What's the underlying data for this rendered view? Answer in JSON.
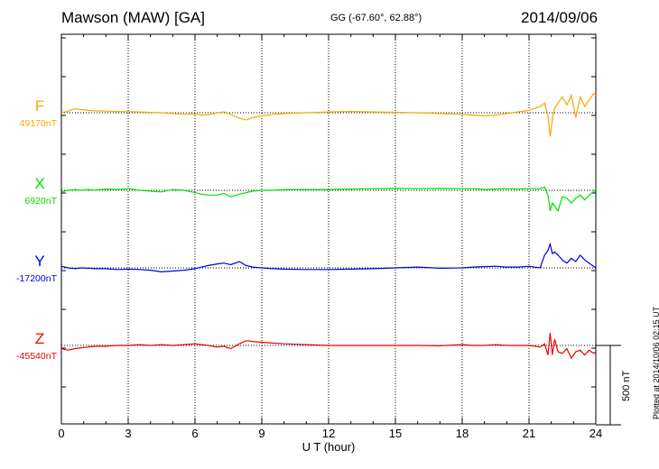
{
  "header": {
    "station": "Mawson (MAW)  [GA]",
    "coords": "GG (-67.60°,  62.88°)",
    "date": "2014/09/06"
  },
  "footer": {
    "plotted": "Plotted at 2014/10/06 02:15 UT",
    "scale_label": "500 nT"
  },
  "colors": {
    "F": "#f5a800",
    "X": "#00dd00",
    "Y": "#0000dd",
    "Z": "#ee0000"
  },
  "chart_data": {
    "type": "line",
    "title": "Mawson (MAW)  [GA]",
    "xlabel": "U T (hour)",
    "ylabel": "",
    "xlim": [
      0,
      24
    ],
    "xticks": [
      "0",
      "3",
      "6",
      "9",
      "12",
      "15",
      "18",
      "21",
      "24"
    ],
    "grid": true,
    "scale_bar_nT": 500,
    "series": [
      {
        "name": "F",
        "baseline_label": "49170nT",
        "x": [
          0,
          0.3,
          0.6,
          0.9,
          1.2,
          1.5,
          2,
          2.5,
          3,
          3.5,
          4,
          4.5,
          5,
          5.5,
          6,
          6.3,
          6.6,
          7,
          7.3,
          7.6,
          8,
          8.3,
          8.6,
          9,
          9.5,
          10,
          11,
          12,
          13,
          14,
          15,
          16,
          17,
          18,
          18.5,
          19,
          19.5,
          20,
          20.5,
          21,
          21.5,
          21.7,
          21.85,
          21.95,
          22.05,
          22.15,
          22.3,
          22.5,
          22.7,
          22.9,
          23.1,
          23.3,
          23.5,
          23.7,
          23.9,
          24
        ],
        "y": [
          0,
          10,
          25,
          20,
          15,
          12,
          10,
          8,
          7,
          5,
          2,
          0,
          -5,
          -10,
          -8,
          -15,
          -12,
          0,
          5,
          -10,
          -35,
          -45,
          -30,
          -20,
          -10,
          -5,
          0,
          5,
          8,
          5,
          3,
          0,
          -5,
          -10,
          -15,
          -20,
          -15,
          -5,
          5,
          15,
          40,
          60,
          -20,
          -150,
          -40,
          30,
          60,
          100,
          50,
          110,
          -30,
          100,
          40,
          80,
          120,
          110
        ]
      },
      {
        "name": "X",
        "baseline_label": "6920nT",
        "x": [
          0,
          0.3,
          0.6,
          0.9,
          1.2,
          1.5,
          2,
          2.5,
          3,
          3.5,
          4,
          4.5,
          5,
          5.5,
          6,
          6.3,
          6.6,
          7,
          7.3,
          7.6,
          8,
          8.3,
          8.6,
          9,
          9.5,
          10,
          11,
          12,
          13,
          14,
          15,
          16,
          17,
          18,
          18.5,
          19,
          19.5,
          20,
          20.5,
          21,
          21.5,
          21.7,
          21.85,
          21.95,
          22.05,
          22.15,
          22.3,
          22.5,
          22.7,
          22.9,
          23.1,
          23.3,
          23.5,
          23.7,
          23.9,
          24
        ],
        "y": [
          -10,
          0,
          5,
          0,
          5,
          0,
          8,
          5,
          10,
          0,
          -5,
          -10,
          5,
          0,
          -15,
          -25,
          -30,
          -30,
          -20,
          -40,
          -25,
          -15,
          -5,
          0,
          0,
          5,
          5,
          5,
          8,
          10,
          12,
          10,
          12,
          10,
          10,
          5,
          8,
          10,
          8,
          10,
          10,
          20,
          -30,
          -130,
          -80,
          -100,
          -130,
          -40,
          -50,
          -80,
          -50,
          -30,
          -60,
          -30,
          -10,
          10
        ]
      },
      {
        "name": "Y",
        "baseline_label": "-17200nT",
        "x": [
          0,
          0.3,
          0.6,
          0.9,
          1.2,
          1.5,
          2,
          2.5,
          3,
          3.5,
          4,
          4.5,
          5,
          5.5,
          6,
          6.3,
          6.6,
          7,
          7.3,
          7.6,
          8,
          8.3,
          8.6,
          9,
          9.5,
          10,
          11,
          12,
          13,
          14,
          15,
          16,
          17,
          18,
          18.5,
          19,
          19.5,
          20,
          20.5,
          21,
          21.5,
          21.7,
          21.85,
          21.95,
          22.05,
          22.15,
          22.3,
          22.5,
          22.7,
          22.9,
          23.1,
          23.3,
          23.5,
          23.7,
          23.9,
          24
        ],
        "y": [
          10,
          0,
          -5,
          0,
          -2,
          -5,
          -5,
          -10,
          -8,
          -10,
          -15,
          -25,
          -20,
          -15,
          -5,
          5,
          15,
          25,
          30,
          20,
          40,
          15,
          5,
          0,
          -5,
          -8,
          -10,
          -10,
          -8,
          -5,
          0,
          5,
          -2,
          0,
          5,
          8,
          10,
          5,
          5,
          10,
          0,
          80,
          110,
          150,
          90,
          100,
          80,
          50,
          30,
          60,
          40,
          80,
          50,
          30,
          10,
          0
        ]
      },
      {
        "name": "Z",
        "baseline_label": "-45540nT",
        "x": [
          0,
          0.3,
          0.6,
          0.9,
          1.2,
          1.5,
          2,
          2.5,
          3,
          3.5,
          4,
          4.5,
          5,
          5.5,
          6,
          6.3,
          6.6,
          7,
          7.3,
          7.6,
          8,
          8.3,
          8.6,
          9,
          9.5,
          10,
          11,
          12,
          13,
          14,
          15,
          16,
          17,
          18,
          18.5,
          19,
          19.5,
          20,
          20.5,
          21,
          21.5,
          21.7,
          21.85,
          21.95,
          22.05,
          22.15,
          22.3,
          22.5,
          22.7,
          22.9,
          23.1,
          23.3,
          23.5,
          23.7,
          23.9,
          24
        ],
        "y": [
          -20,
          -30,
          -20,
          -15,
          -10,
          -5,
          -5,
          0,
          0,
          5,
          0,
          5,
          0,
          5,
          10,
          5,
          0,
          -10,
          -5,
          -20,
          10,
          30,
          25,
          20,
          15,
          10,
          5,
          0,
          0,
          0,
          0,
          0,
          -2,
          5,
          0,
          0,
          5,
          0,
          0,
          0,
          -10,
          10,
          -60,
          80,
          -60,
          40,
          -40,
          -50,
          -20,
          -80,
          -40,
          -30,
          -60,
          -30,
          -50,
          -40
        ]
      }
    ]
  }
}
